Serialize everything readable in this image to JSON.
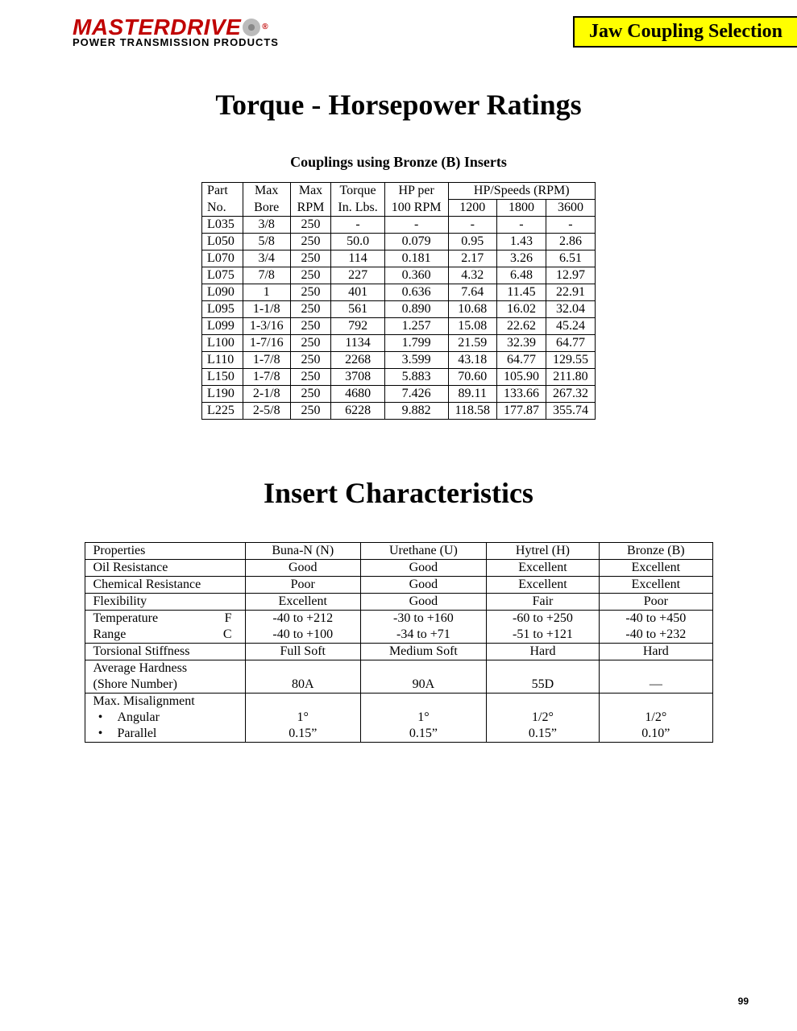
{
  "brand": {
    "name": "MASTERDRIVE",
    "tagline": "POWER TRANSMISSION PRODUCTS"
  },
  "section_tag": "Jaw Coupling Selection",
  "title1": "Torque - Horsepower Ratings",
  "subtitle1": "Couplings using Bronze (B) Inserts",
  "torque_table": {
    "head1": [
      "Part",
      "Max",
      "Max",
      "Torque",
      "HP per",
      "HP/Speeds (RPM)"
    ],
    "head2": [
      "No.",
      "Bore",
      "RPM",
      "In. Lbs.",
      "100 RPM",
      "1200",
      "1800",
      "3600"
    ],
    "rows": [
      [
        "L035",
        "3/8",
        "250",
        "-",
        "-",
        "-",
        "-",
        "-"
      ],
      [
        "L050",
        "5/8",
        "250",
        "50.0",
        "0.079",
        "0.95",
        "1.43",
        "2.86"
      ],
      [
        "L070",
        "3/4",
        "250",
        "114",
        "0.181",
        "2.17",
        "3.26",
        "6.51"
      ],
      [
        "L075",
        "7/8",
        "250",
        "227",
        "0.360",
        "4.32",
        "6.48",
        "12.97"
      ],
      [
        "L090",
        "1",
        "250",
        "401",
        "0.636",
        "7.64",
        "11.45",
        "22.91"
      ],
      [
        "L095",
        "1-1/8",
        "250",
        "561",
        "0.890",
        "10.68",
        "16.02",
        "32.04"
      ],
      [
        "L099",
        "1-3/16",
        "250",
        "792",
        "1.257",
        "15.08",
        "22.62",
        "45.24"
      ],
      [
        "L100",
        "1-7/16",
        "250",
        "1134",
        "1.799",
        "21.59",
        "32.39",
        "64.77"
      ],
      [
        "L110",
        "1-7/8",
        "250",
        "2268",
        "3.599",
        "43.18",
        "64.77",
        "129.55"
      ],
      [
        "L150",
        "1-7/8",
        "250",
        "3708",
        "5.883",
        "70.60",
        "105.90",
        "211.80"
      ],
      [
        "L190",
        "2-1/8",
        "250",
        "4680",
        "7.426",
        "89.11",
        "133.66",
        "267.32"
      ],
      [
        "L225",
        "2-5/8",
        "250",
        "6228",
        "9.882",
        "118.58",
        "177.87",
        "355.74"
      ]
    ]
  },
  "title2": "Insert Characteristics",
  "chars_table": {
    "columns": [
      "Properties",
      "Buna-N (N)",
      "Urethane (U)",
      "Hytrel (H)",
      "Bronze (B)"
    ],
    "rows": [
      {
        "prop": "Oil Resistance",
        "vals": [
          "Good",
          "Good",
          "Excellent",
          "Excellent"
        ]
      },
      {
        "prop": "Chemical Resistance",
        "vals": [
          "Poor",
          "Good",
          "Excellent",
          "Excellent"
        ]
      },
      {
        "prop": "Flexibility",
        "vals": [
          "Excellent",
          "Good",
          "Fair",
          "Poor"
        ]
      }
    ],
    "temp": {
      "label": "Temperature",
      "unitF": "F",
      "unitC": "C",
      "label2": "Range",
      "f": [
        "-40 to +212",
        "-30 to +160",
        "-60 to +250",
        "-40 to +450"
      ],
      "c": [
        "-40 to +100",
        "-34 to +71",
        "-51 to +121",
        "-40 to +232"
      ]
    },
    "torsional": {
      "prop": "Torsional Stiffness",
      "vals": [
        "Full Soft",
        "Medium Soft",
        "Hard",
        "Hard"
      ]
    },
    "hardness": {
      "prop1": "Average Hardness",
      "prop2": "(Shore Number)",
      "vals": [
        "80A",
        "90A",
        "55D",
        "—"
      ]
    },
    "misalign": {
      "prop": "Max. Misalignment",
      "angular": {
        "label": "Angular",
        "vals": [
          "1°",
          "1°",
          "1/2°",
          "1/2°"
        ]
      },
      "parallel": {
        "label": "Parallel",
        "vals": [
          "0.15”",
          "0.15”",
          "0.15”",
          "0.10”"
        ]
      }
    }
  },
  "page_number": "99"
}
